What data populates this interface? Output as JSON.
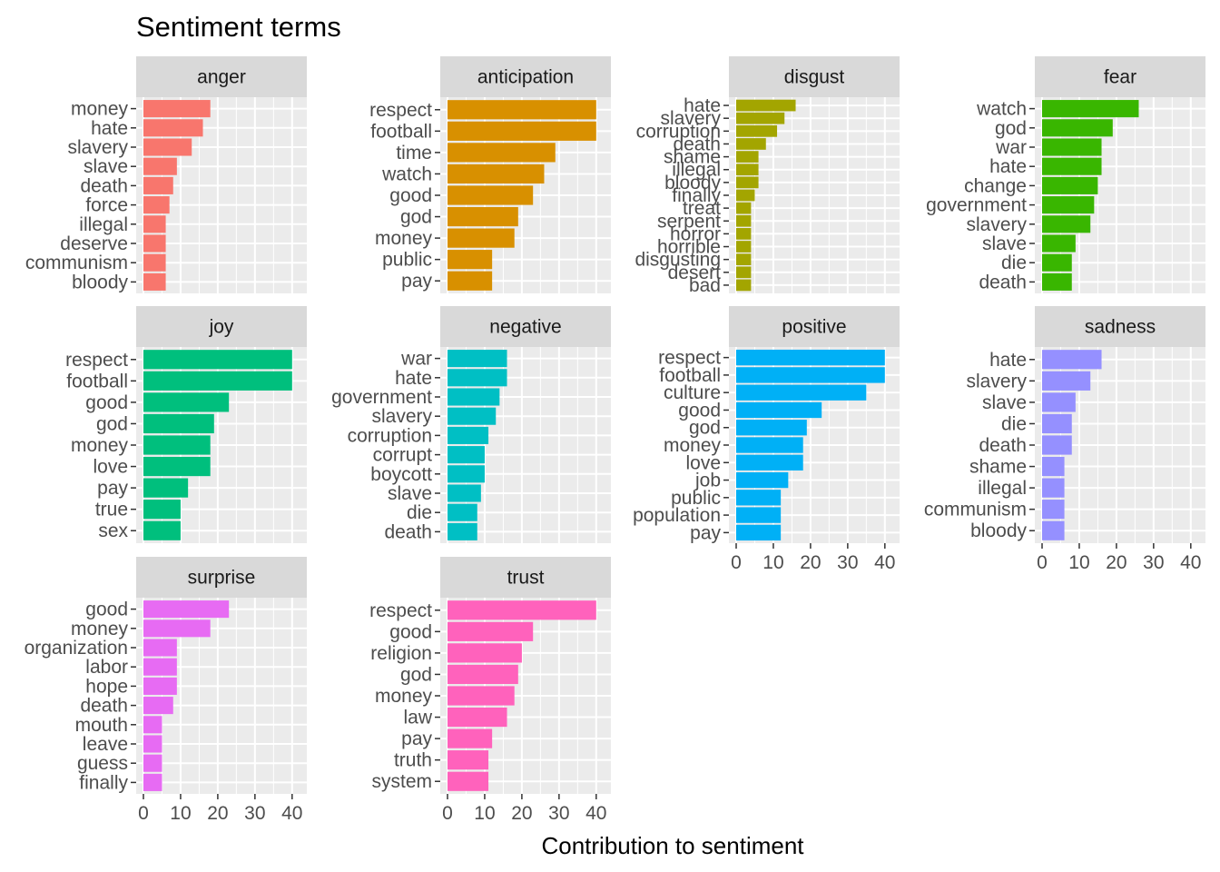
{
  "chart_data": {
    "type": "bar",
    "orientation": "horizontal",
    "title": "Sentiment terms",
    "xlabel": "Contribution to sentiment",
    "ylabel": "",
    "xlim": [
      0,
      42
    ],
    "x_ticks": [
      "0",
      "10",
      "20",
      "30",
      "40"
    ],
    "grid": true,
    "legend": "none",
    "facet_columns": 4,
    "panels": [
      {
        "name": "anger",
        "color": "#F8766D",
        "terms": [
          "money",
          "hate",
          "slavery",
          "slave",
          "death",
          "force",
          "illegal",
          "deserve",
          "communism",
          "bloody"
        ],
        "values": [
          18,
          16,
          13,
          9,
          8,
          7,
          6,
          6,
          6,
          6
        ]
      },
      {
        "name": "anticipation",
        "color": "#D89000",
        "terms": [
          "respect",
          "football",
          "time",
          "watch",
          "good",
          "god",
          "money",
          "public",
          "pay"
        ],
        "values": [
          40,
          40,
          29,
          26,
          23,
          19,
          18,
          12,
          12
        ]
      },
      {
        "name": "disgust",
        "color": "#A3A500",
        "terms": [
          "hate",
          "slavery",
          "corruption",
          "death",
          "shame",
          "illegal",
          "bloody",
          "finally",
          "treat",
          "serpent",
          "horror",
          "horrible",
          "disgusting",
          "desert",
          "bad"
        ],
        "values": [
          16,
          13,
          11,
          8,
          6,
          6,
          6,
          5,
          4,
          4,
          4,
          4,
          4,
          4,
          4
        ]
      },
      {
        "name": "fear",
        "color": "#39B600",
        "terms": [
          "watch",
          "god",
          "war",
          "hate",
          "change",
          "government",
          "slavery",
          "slave",
          "die",
          "death"
        ],
        "values": [
          26,
          19,
          16,
          16,
          15,
          14,
          13,
          9,
          8,
          8
        ]
      },
      {
        "name": "joy",
        "color": "#00BF7D",
        "terms": [
          "respect",
          "football",
          "good",
          "god",
          "money",
          "love",
          "pay",
          "true",
          "sex"
        ],
        "values": [
          40,
          40,
          23,
          19,
          18,
          18,
          12,
          10,
          10
        ]
      },
      {
        "name": "negative",
        "color": "#00BFC4",
        "terms": [
          "war",
          "hate",
          "government",
          "slavery",
          "corruption",
          "corrupt",
          "boycott",
          "slave",
          "die",
          "death"
        ],
        "values": [
          16,
          16,
          14,
          13,
          11,
          10,
          10,
          9,
          8,
          8
        ]
      },
      {
        "name": "positive",
        "color": "#00B0F6",
        "terms": [
          "respect",
          "football",
          "culture",
          "good",
          "god",
          "money",
          "love",
          "job",
          "public",
          "population",
          "pay"
        ],
        "values": [
          40,
          40,
          35,
          23,
          19,
          18,
          18,
          14,
          12,
          12,
          12
        ]
      },
      {
        "name": "sadness",
        "color": "#9590FF",
        "terms": [
          "hate",
          "slavery",
          "slave",
          "die",
          "death",
          "shame",
          "illegal",
          "communism",
          "bloody"
        ],
        "values": [
          16,
          13,
          9,
          8,
          8,
          6,
          6,
          6,
          6
        ]
      },
      {
        "name": "surprise",
        "color": "#E76BF3",
        "terms": [
          "good",
          "money",
          "organization",
          "labor",
          "hope",
          "death",
          "mouth",
          "leave",
          "guess",
          "finally"
        ],
        "values": [
          23,
          18,
          9,
          9,
          9,
          8,
          5,
          5,
          5,
          5
        ]
      },
      {
        "name": "trust",
        "color": "#FF62BC",
        "terms": [
          "respect",
          "good",
          "religion",
          "god",
          "money",
          "law",
          "pay",
          "truth",
          "system"
        ],
        "values": [
          40,
          23,
          20,
          19,
          18,
          16,
          12,
          11,
          11
        ]
      }
    ]
  }
}
